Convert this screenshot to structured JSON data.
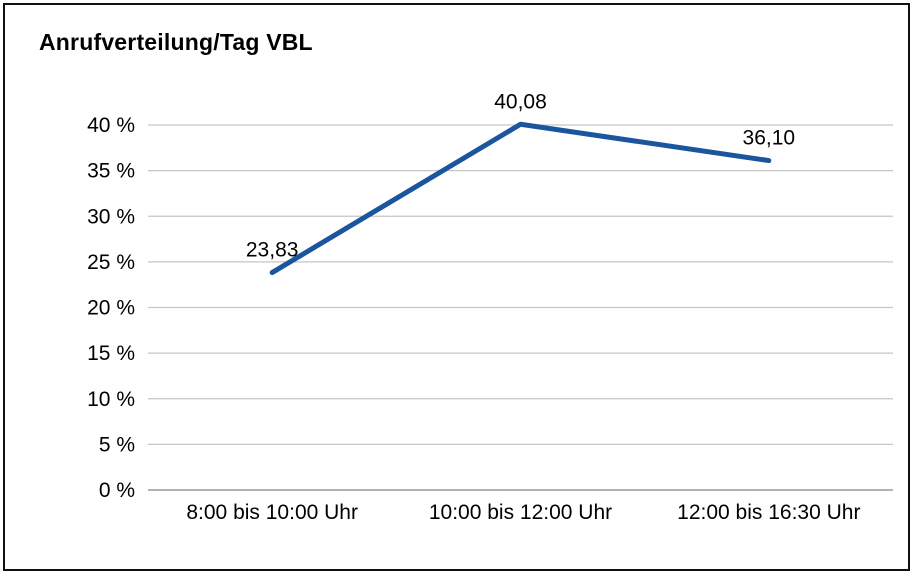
{
  "chart_data": {
    "type": "line",
    "title": "Anrufverteilung/Tag VBL",
    "categories": [
      "8:00 bis 10:00 Uhr",
      "10:00 bis 12:00 Uhr",
      "12:00 bis 16:30 Uhr"
    ],
    "values": [
      23.83,
      40.08,
      36.1
    ],
    "data_labels": [
      "23,83",
      "40,08",
      "36,10"
    ],
    "xlabel": "",
    "ylabel": "",
    "ylim": [
      0,
      40
    ],
    "y_tick_step": 5,
    "y_tick_labels": [
      "0 %",
      "5 %",
      "10 %",
      "15 %",
      "20 %",
      "25 %",
      "30 %",
      "35 %",
      "40 %"
    ],
    "grid": true,
    "legend": "none",
    "colors": {
      "line": "#1b559e",
      "gridline": "#c6c6c6",
      "baseline_axis": "#9a9a9a",
      "text": "#000000",
      "background": "#ffffff",
      "border": "#111111"
    }
  }
}
